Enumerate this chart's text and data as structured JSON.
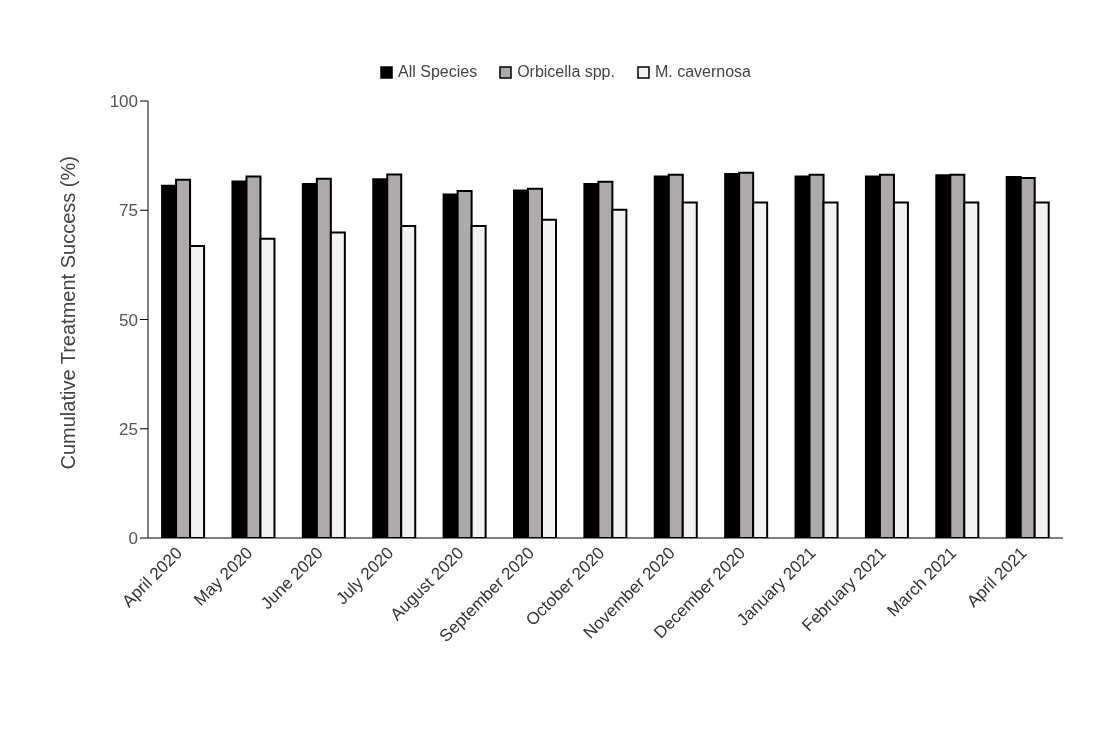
{
  "chart_data": {
    "type": "bar",
    "ylabel": "Cumulative Treatment Success (%)",
    "categories": [
      "April 2020",
      "May 2020",
      "June 2020",
      "July 2020",
      "August 2020",
      "September 2020",
      "October 2020",
      "November 2020",
      "December 2020",
      "January 2021",
      "February 2021",
      "March 2021",
      "April 2021"
    ],
    "series": [
      {
        "name": "All Species",
        "color": "#000000",
        "values": [
          80.6,
          81.6,
          81.0,
          82.1,
          78.6,
          79.5,
          81.0,
          82.7,
          83.3,
          82.7,
          82.7,
          83.0,
          82.6
        ]
      },
      {
        "name": "Orbicella spp.",
        "color": "#aeaaaa",
        "values": [
          82.0,
          82.7,
          82.2,
          83.2,
          79.4,
          79.9,
          81.5,
          83.1,
          83.6,
          83.1,
          83.1,
          83.1,
          82.4
        ]
      },
      {
        "name": "M. cavernosa",
        "color": "#f2f2f2",
        "values": [
          66.8,
          68.5,
          69.9,
          71.4,
          71.4,
          72.8,
          75.1,
          76.8,
          76.8,
          76.8,
          76.8,
          76.8,
          76.8
        ]
      }
    ],
    "ylim": [
      0,
      100
    ],
    "yticks": [
      0,
      25,
      50,
      75,
      100
    ],
    "grid": false,
    "legend": "top"
  }
}
